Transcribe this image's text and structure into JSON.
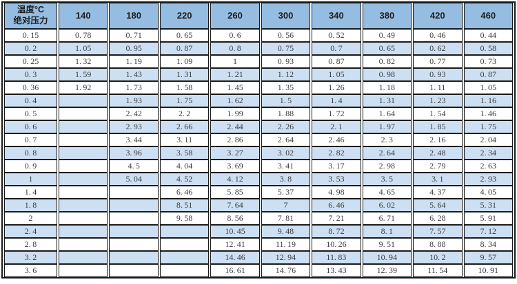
{
  "table": {
    "corner": {
      "line1": "温度°C",
      "line2": "绝对压力"
    },
    "temperature_columns": [
      "140",
      "180",
      "220",
      "260",
      "300",
      "340",
      "380",
      "420",
      "460"
    ],
    "rows": [
      {
        "pressure": "0.15",
        "values": [
          "0.78",
          "0.71",
          "0.65",
          "0.6",
          "0.56",
          "0.52",
          "0.49",
          "0.46",
          "0.44"
        ]
      },
      {
        "pressure": "0.2",
        "values": [
          "1.05",
          "0.95",
          "0.87",
          "0.8",
          "0.75",
          "0.7",
          "0.65",
          "0.62",
          "0.58"
        ]
      },
      {
        "pressure": "0.25",
        "values": [
          "1.32",
          "1.19",
          "1.09",
          "1",
          "0.93",
          "0.87",
          "0.82",
          "0.77",
          "0.73"
        ]
      },
      {
        "pressure": "0.3",
        "values": [
          "1.59",
          "1.43",
          "1.31",
          "1.21",
          "1.12",
          "1.05",
          "0.98",
          "0.93",
          "0.87"
        ]
      },
      {
        "pressure": "0.36",
        "values": [
          "1.92",
          "1.73",
          "1.58",
          "1.45",
          "1.35",
          "1.26",
          "1.18",
          "1.11",
          "1.05"
        ]
      },
      {
        "pressure": "0.4",
        "values": [
          "",
          "1.93",
          "1.75",
          "1.62",
          "1.5",
          "1.4",
          "1.31",
          "1.23",
          "1.16"
        ]
      },
      {
        "pressure": "0.5",
        "values": [
          "",
          "2.42",
          "2.2",
          "1.99",
          "1.88",
          "1.72",
          "1.64",
          "1.54",
          "1.46"
        ]
      },
      {
        "pressure": "0.6",
        "values": [
          "",
          "2.93",
          "2.66",
          "2.44",
          "2.26",
          "2.1",
          "1.97",
          "1.85",
          "1.75"
        ]
      },
      {
        "pressure": "0.7",
        "values": [
          "",
          "3.44",
          "3.11",
          "2.86",
          "2.64",
          "2.46",
          "2.3",
          "2.16",
          "2.04"
        ]
      },
      {
        "pressure": "0.8",
        "values": [
          "",
          "3.96",
          "3.58",
          "3.27",
          "3.02",
          "2.82",
          "2.64",
          "2.48",
          "2.34"
        ]
      },
      {
        "pressure": "0.9",
        "values": [
          "",
          "4.5",
          "4.04",
          "3.69",
          "3.41",
          "3.17",
          "2.98",
          "2.79",
          "2.63"
        ]
      },
      {
        "pressure": "1",
        "values": [
          "",
          "5.04",
          "4.52",
          "4.12",
          "3.8",
          "3.53",
          "3.5",
          "3.1",
          "2.93"
        ]
      },
      {
        "pressure": "1.4",
        "values": [
          "",
          "",
          "6.46",
          "5.85",
          "5.37",
          "4.98",
          "4.65",
          "4.37",
          "4.05"
        ]
      },
      {
        "pressure": "1.8",
        "values": [
          "",
          "",
          "8.51",
          "7.64",
          "7",
          "6.46",
          "6.02",
          "5.64",
          "5.31"
        ]
      },
      {
        "pressure": "2",
        "values": [
          "",
          "",
          "9.58",
          "8.56",
          "7.81",
          "7.21",
          "6.71",
          "6.28",
          "5.91"
        ]
      },
      {
        "pressure": "2.4",
        "values": [
          "",
          "",
          "",
          "10.45",
          "9.48",
          "8.72",
          "8.1",
          "7.57",
          "7.12"
        ]
      },
      {
        "pressure": "2.8",
        "values": [
          "",
          "",
          "",
          "12.41",
          "11.19",
          "10.26",
          "9.51",
          "8.88",
          "8.34"
        ]
      },
      {
        "pressure": "3.2",
        "values": [
          "",
          "",
          "",
          "14.46",
          "12.94",
          "11.83",
          "10.94",
          "10.2",
          "9.57"
        ]
      },
      {
        "pressure": "3.6",
        "values": [
          "",
          "",
          "",
          "16.61",
          "14.76",
          "13.43",
          "12.39",
          "11.54",
          "10.91"
        ]
      }
    ]
  },
  "colors": {
    "header_bg": "#95BDE2",
    "row_alt_bg": "#CDDFF2",
    "row_bg": "#FFFFFF",
    "border": "#1A1A1A",
    "text": "#3C3C3C",
    "header_text": "#1F1F1F"
  }
}
